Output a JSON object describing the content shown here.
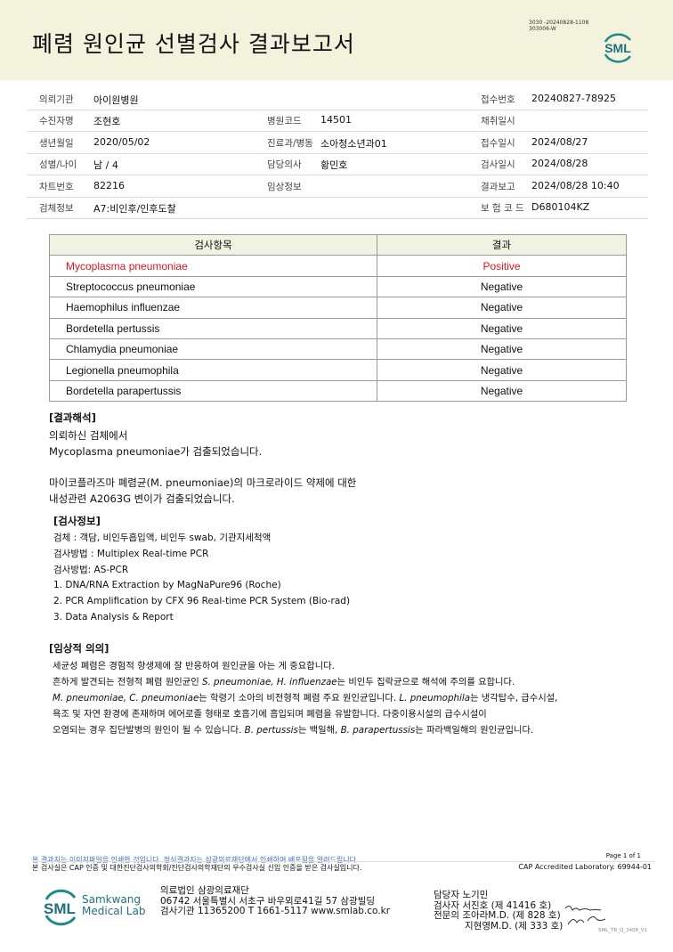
{
  "header": {
    "title": "폐렴 원인균 선별검사 결과보고서",
    "code_line1": "3030 -20240828-1108",
    "code_line2": "303006-W",
    "logo": "SML"
  },
  "info": {
    "rows": [
      [
        {
          "label": "의뢰기관",
          "value": "아이원병원"
        },
        {
          "label": "",
          "value": ""
        },
        {
          "label": "접수번호",
          "value": "20240827-78925"
        }
      ],
      [
        {
          "label": "수진자명",
          "value": "조현호"
        },
        {
          "label": "병원코드",
          "value": "14501"
        },
        {
          "label": "채취일시",
          "value": ""
        }
      ],
      [
        {
          "label": "생년월일",
          "value": "2020/05/02"
        },
        {
          "label": "진료과/병동",
          "value": "소아청소년과01"
        },
        {
          "label": "접수일시",
          "value": "2024/08/27"
        }
      ],
      [
        {
          "label": "성별/나이",
          "value": "남 / 4"
        },
        {
          "label": "담당의사",
          "value": "황민호"
        },
        {
          "label": "검사일시",
          "value": "2024/08/28"
        }
      ],
      [
        {
          "label": "차트번호",
          "value": "82216"
        },
        {
          "label": "임상정보",
          "value": ""
        },
        {
          "label": "결과보고",
          "value": "2024/08/28 10:40"
        }
      ],
      [
        {
          "label": "검체정보",
          "value": "A7:비인후/인후도찰"
        },
        {
          "label": "",
          "value": ""
        },
        {
          "label": "보 험 코 드",
          "value": "D680104KZ"
        }
      ]
    ]
  },
  "results": {
    "headers": [
      "검사항목",
      "결과"
    ],
    "rows": [
      {
        "item": "Mycoplasma pneumoniae",
        "result": "Positive"
      },
      {
        "item": "Streptococcus pneumoniae",
        "result": "Negative"
      },
      {
        "item": "Haemophilus influenzae",
        "result": "Negative"
      },
      {
        "item": "Bordetella pertussis",
        "result": "Negative"
      },
      {
        "item": "Chlamydia pneumoniae",
        "result": "Negative"
      },
      {
        "item": "Legionella pneumophila",
        "result": "Negative"
      },
      {
        "item": "Bordetella parapertussis",
        "result": "Negative"
      }
    ],
    "positive_color": "#e3141b"
  },
  "interpretation": {
    "heading": "[결과해석]",
    "lines": [
      "의뢰하신 검체에서",
      "Mycoplasma pneumoniae가 검출되었습니다.",
      "마이코플라즈마 폐렴균(M. pneumoniae)의 마크로라이드 약제에 대한",
      "내성관련 A2063G 변이가 검출되었습니다."
    ]
  },
  "test_info": {
    "heading": "[검사정보]",
    "lines": [
      "검체 : 객담, 비인두흡입액, 비인두 swab, 기관지세척액",
      "검사방법 : Multiplex Real-time PCR",
      "검사방법: AS-PCR",
      "1. DNA/RNA Extraction by MagNaPure96 (Roche)",
      "2. PCR Amplification by CFX 96 Real-time PCR System (Bio-rad)",
      "3. Data Analysis & Report"
    ]
  },
  "clinical": {
    "heading": "[임상적 의의]",
    "l1": "세균성 폐렴은 경험적 항생제에 잘 반응하여 원인균을 아는 게 중요합니다.",
    "l2a": "흔하게 발견되는 전형적 폐렴 원인균인 ",
    "l2i": "S. pneumoniae, H. influenzae",
    "l2b": "는 비인두 집락균으로 해석에 주의를 요합니다.",
    "l3i": "M. pneumoniae, C. pneumoniae",
    "l3a": "는 학령기 소아의 비전형적 폐렴 주요 원인균입니다. ",
    "l3i2": "L. pneumophila",
    "l3b": "는 냉각탑수, 급수시설,",
    "l4": "욕조 및 자연 환경에 존재하며 에어로졸 형태로 호흡기에 흡입되며 폐렴을 유발합니다. 다중이용시설의 급수시설이",
    "l5a": "오염되는 경우 집단발병의 원인이 될 수 있습니다. ",
    "l5i": "B. pertussis",
    "l5b": "는 백일해, ",
    "l5i2": "B. parapertussis",
    "l5c": "는 파라백일해의 원인균입니다."
  },
  "footer": {
    "notice_blue": "본 결과지는 이미지파일을 인쇄한 것입니다. 정식결과지는 삼광의료재단에서 인쇄하여 배포됨을 알려드립니다.",
    "notice": "본 검사실은 CAP 인증 및 대한진단검사의학회/진단검사의학재단의 우수검사실 신임 인증을 받은 검사실입니다.",
    "page": "Page 1 of 1",
    "cap": "CAP Accredited Laboratory. 69944-01",
    "logo_mark": "SML",
    "logo_name1": "Samkwang",
    "logo_name2": "Medical Lab",
    "addr1": "의료법인 삼광의료재단",
    "addr2": "06742 서울특별시 서초구 바우뫼로41길 57 삼광빌딩",
    "addr3": "검사기관 11365200 T 1661-5117 www.smlab.co.kr",
    "staff1": "담당자 노기민",
    "staff2": "검사자 서진호 (제 41416 호)",
    "staff3": "전문의 조아라M.D. (제 828 호)",
    "staff4": "지현영M.D. (제 333 호)",
    "form_code": "SML_TR_Q_2408_V1"
  }
}
